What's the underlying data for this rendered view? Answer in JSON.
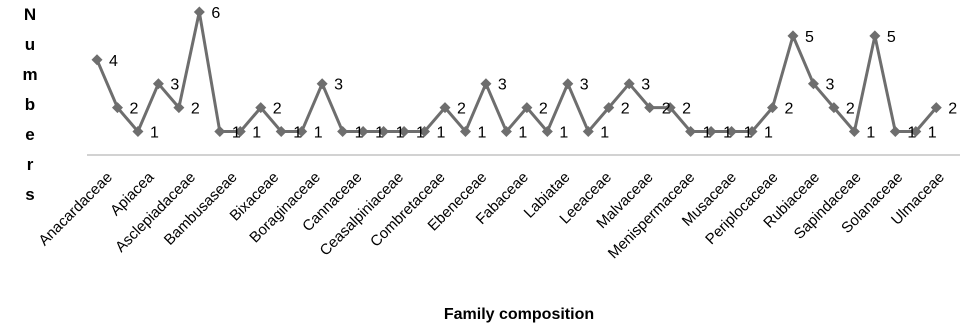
{
  "chart_data": {
    "type": "line",
    "xlabel": "Family composition",
    "ylabel": "Numbers",
    "ylim": [
      0,
      6
    ],
    "grid": false,
    "legend": "none",
    "line_color": "#6e6e6e",
    "x_tick_labels": [
      "Anacardaceae",
      "Apiacea",
      "Asclepiadaceae",
      "Bambusaseae",
      "Bixaceae",
      "Boraginaceae",
      "Cannaceae",
      "Ceasalpiniaceae",
      "Combretaceae",
      "Ebeneceae",
      "Fabaceae",
      "Labiatae",
      "Leeaceae",
      "Malvaceae",
      "Menispermaceae",
      "Musaceae",
      "Periplocaceae",
      "Rubiaceae",
      "Sapindaceae",
      "Solanaceae",
      "Ulmaceae"
    ],
    "values": [
      4,
      2,
      1,
      3,
      2,
      6,
      1,
      1,
      2,
      1,
      1,
      3,
      1,
      1,
      1,
      1,
      1,
      2,
      1,
      3,
      1,
      2,
      1,
      3,
      1,
      2,
      3,
      2,
      2,
      1,
      1,
      1,
      1,
      2,
      5,
      3,
      2,
      1,
      5,
      1,
      1,
      2
    ]
  }
}
